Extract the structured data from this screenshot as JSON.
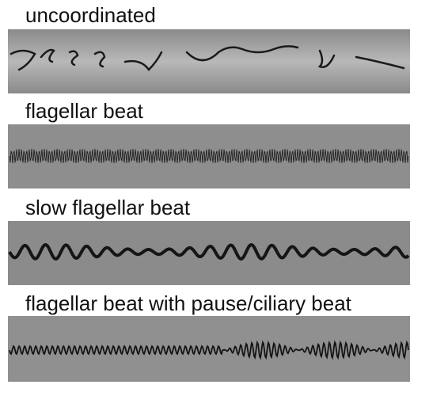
{
  "panels": [
    {
      "label": "uncoordinated"
    },
    {
      "label": "flagellar beat"
    },
    {
      "label": "slow flagellar beat"
    },
    {
      "label": "flagellar beat with pause/ciliary beat"
    }
  ]
}
